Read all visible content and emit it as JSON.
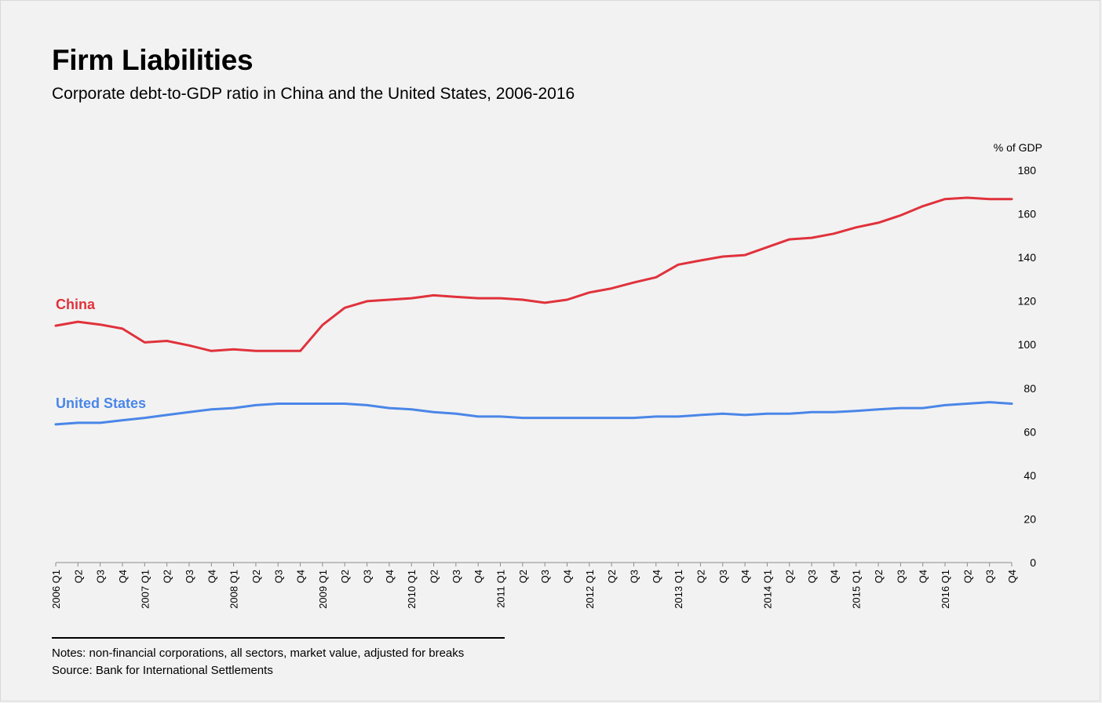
{
  "title": "Firm Liabilities",
  "subtitle": "Corporate debt-to-GDP ratio in China and the United States, 2006-2016",
  "notes": {
    "line1": "Notes: non-financial corporations,  all sectors, market value, adjusted for breaks",
    "line2": "Source: Bank for International Settlements"
  },
  "chart_data": {
    "type": "line",
    "ylabel": "% of GDP",
    "ylim": [
      0,
      180
    ],
    "yticks": [
      0,
      20,
      40,
      60,
      80,
      100,
      120,
      140,
      160,
      180
    ],
    "y_axis_position": "right",
    "grid": false,
    "legend": "inline labels at left",
    "x": [
      "2006 Q1",
      "Q2",
      "Q3",
      "Q4",
      "2007 Q1",
      "Q2",
      "Q3",
      "Q4",
      "2008 Q1",
      "Q2",
      "Q3",
      "Q4",
      "2009 Q1",
      "Q2",
      "Q3",
      "Q4",
      "2010 Q1",
      "Q2",
      "Q3",
      "Q4",
      "2011 Q1",
      "Q2",
      "Q3",
      "Q4",
      "2012 Q1",
      "Q2",
      "Q3",
      "Q4",
      "2013 Q1",
      "Q2",
      "Q3",
      "Q4",
      "2014 Q1",
      "Q2",
      "Q3",
      "Q4",
      "2015 Q1",
      "Q2",
      "Q3",
      "Q4",
      "2016 Q1",
      "Q2",
      "Q3",
      "Q4"
    ],
    "series": [
      {
        "name": "China",
        "color": "#e0323c",
        "values": [
          108.7,
          110.5,
          109.2,
          107.3,
          101.0,
          101.7,
          99.6,
          97.1,
          97.8,
          97.1,
          97.1,
          97.1,
          109.0,
          116.9,
          119.9,
          120.6,
          121.3,
          122.6,
          121.9,
          121.3,
          121.3,
          120.6,
          119.2,
          120.6,
          123.9,
          125.8,
          128.5,
          130.9,
          136.7,
          138.6,
          140.4,
          141.1,
          144.7,
          148.3,
          149.0,
          150.9,
          153.8,
          155.9,
          159.3,
          163.5,
          166.8,
          167.4,
          166.8,
          166.8
        ]
      },
      {
        "name": "United States",
        "color": "#4a86e8",
        "values": [
          63.4,
          64.1,
          64.1,
          65.3,
          66.4,
          67.7,
          69.0,
          70.3,
          70.9,
          72.2,
          72.9,
          72.9,
          72.9,
          72.9,
          72.2,
          70.9,
          70.3,
          69.0,
          68.3,
          67.0,
          67.0,
          66.4,
          66.4,
          66.4,
          66.4,
          66.4,
          66.4,
          67.0,
          67.0,
          67.7,
          68.3,
          67.7,
          68.3,
          68.3,
          69.0,
          69.0,
          69.6,
          70.3,
          70.9,
          70.9,
          72.2,
          72.9,
          73.6,
          72.9
        ]
      }
    ]
  }
}
